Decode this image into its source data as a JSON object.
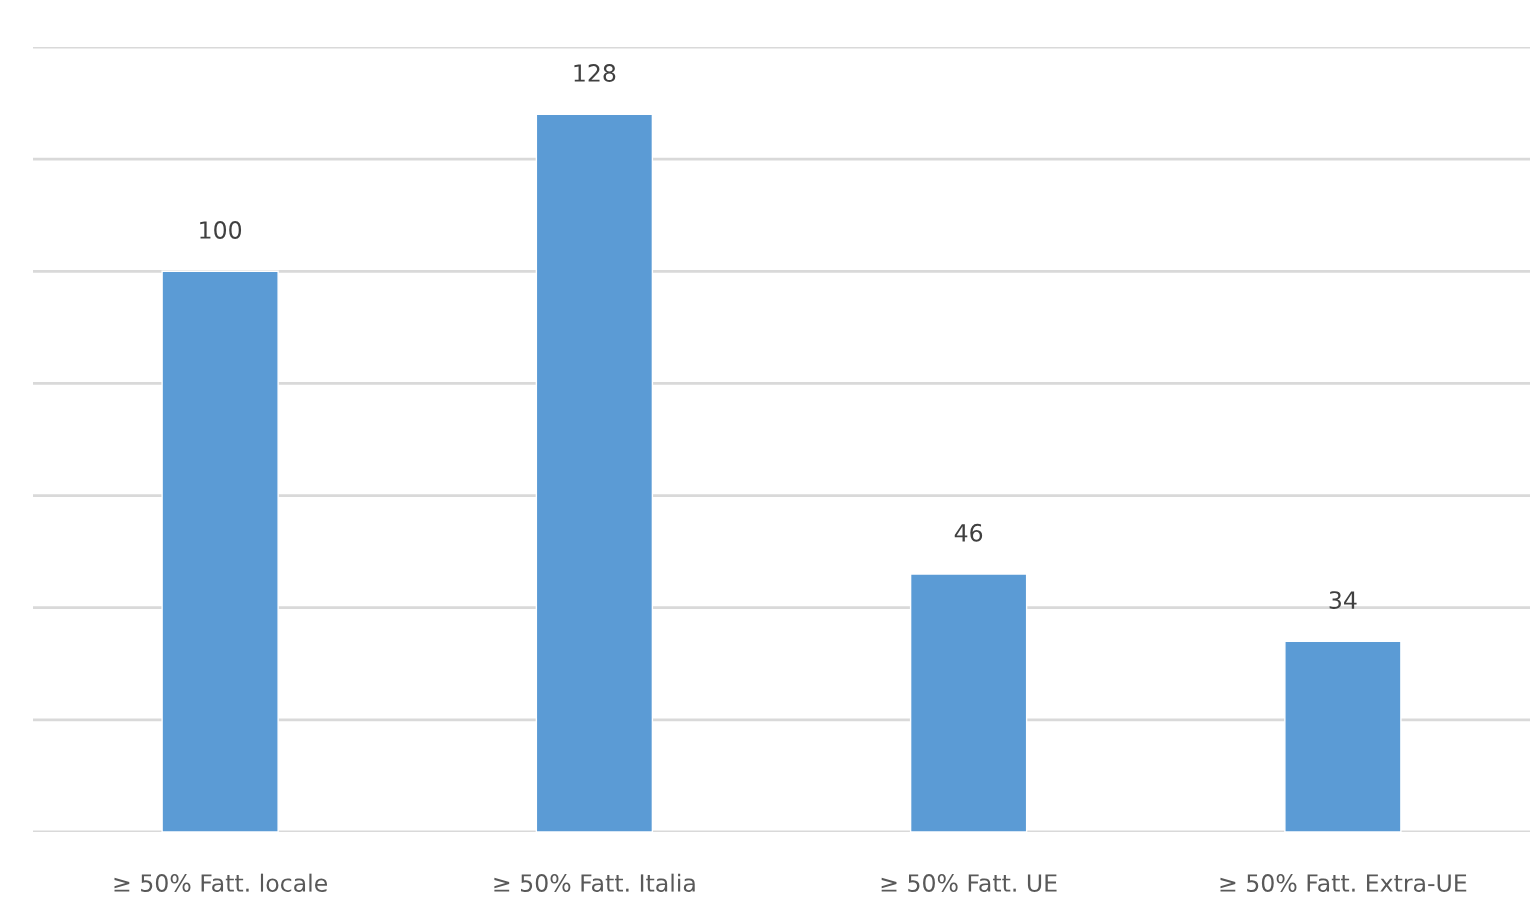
{
  "chart_data": {
    "type": "bar",
    "categories": [
      "≥ 50% Fatt. locale",
      "≥ 50% Fatt. Italia",
      "≥ 50% Fatt. UE",
      "≥ 50% Fatt. Extra-UE"
    ],
    "values": [
      100,
      128,
      46,
      34
    ],
    "color": "#5b9bd5",
    "data_labels": true,
    "ylim": [
      0,
      140
    ],
    "yticks": [
      {
        "value": 0,
        "label": null
      },
      {
        "value": 20,
        "label": null
      },
      {
        "value": 40,
        "label": null
      },
      {
        "value": 60,
        "label": null
      },
      {
        "value": 80,
        "label": null
      },
      {
        "value": 100,
        "label": null
      },
      {
        "value": 120,
        "label": null
      },
      {
        "value": 140,
        "label": null
      }
    ],
    "tick_labels": "x",
    "grid": "y"
  }
}
